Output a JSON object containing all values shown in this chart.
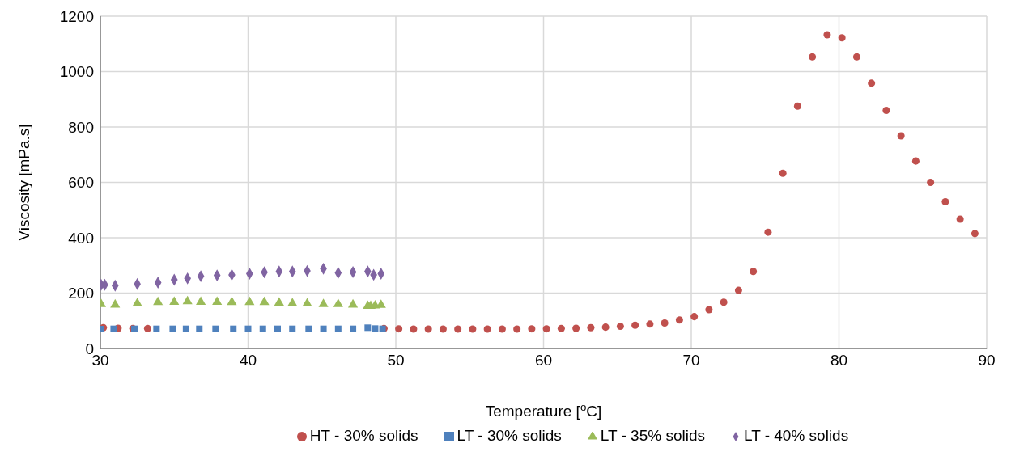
{
  "chart_data": {
    "type": "scatter",
    "xlabel": "Temperature [$^{o}$C]",
    "ylabel": "Viscosity [mPa.s]",
    "xlim": [
      30,
      90
    ],
    "xticks": [
      30,
      40,
      50,
      60,
      70,
      80,
      90
    ],
    "ylim": [
      0,
      1200
    ],
    "yticks": [
      0,
      200,
      400,
      600,
      800,
      1000,
      1200
    ],
    "grid": true,
    "legend": "bottom",
    "series": [
      {
        "name": "HT - 30% solids",
        "color": "#c0504d",
        "marker": "circle",
        "x": [
          30.2,
          31.2,
          32.2,
          33.2,
          34.2,
          35.2,
          36.2,
          37.2,
          38.2,
          39.2,
          40.2,
          41.2,
          42.2,
          43.2,
          44.2,
          45.2,
          46.2,
          47.2,
          48.2,
          49.2,
          50.2,
          51.2,
          52.2,
          53.2,
          54.2,
          55.2,
          56.2,
          57.2,
          58.2,
          59.2,
          60.2,
          61.2,
          62.2,
          63.2,
          64.2,
          65.2,
          66.2,
          67.2,
          68.2,
          69.2,
          70.2,
          71.2,
          72.2,
          73.2,
          74.2,
          75.2,
          76.2,
          77.2,
          78.2,
          79.2,
          80.2,
          81.2,
          82.2,
          83.2,
          84.2,
          85.2,
          86.2,
          87.2,
          88.2,
          89.2
        ],
        "values": [
          75,
          73,
          72,
          72,
          null,
          null,
          null,
          null,
          null,
          null,
          null,
          null,
          null,
          null,
          null,
          null,
          null,
          null,
          null,
          72,
          71,
          70,
          70,
          70,
          70,
          70,
          70,
          70,
          70,
          71,
          71,
          72,
          73,
          75,
          77,
          80,
          84,
          88,
          92,
          103,
          115,
          140,
          167,
          210,
          278,
          420,
          633,
          875,
          1053,
          1133,
          1122,
          1053,
          958,
          860,
          768,
          677,
          600,
          530,
          467,
          415
        ]
      },
      {
        "name": "LT - 30% solids",
        "color": "#4f81bd",
        "marker": "square",
        "x": [
          30.0,
          30.9,
          32.3,
          33.8,
          34.9,
          35.8,
          36.7,
          37.8,
          39.0,
          40.0,
          41.0,
          42.0,
          43.0,
          44.1,
          45.1,
          46.1,
          47.1,
          48.1,
          48.6,
          49.1
        ],
        "values": [
          70,
          71,
          71,
          71,
          71,
          71,
          71,
          71,
          71,
          71,
          71,
          71,
          71,
          71,
          71,
          71,
          71,
          75,
          72,
          71
        ]
      },
      {
        "name": "LT - 35% solids",
        "color": "#9bbb59",
        "marker": "triangle",
        "x": [
          30.05,
          31.0,
          32.5,
          33.9,
          35.0,
          35.9,
          36.8,
          37.9,
          38.9,
          40.1,
          41.1,
          42.1,
          43.0,
          44.0,
          45.1,
          46.1,
          47.1,
          48.1,
          48.3,
          48.6,
          49.0
        ],
        "values": [
          160,
          158,
          163,
          167,
          168,
          170,
          168,
          168,
          167,
          167,
          167,
          165,
          163,
          162,
          160,
          160,
          158,
          153,
          153,
          155,
          157
        ]
      },
      {
        "name": "LT - 40% solids",
        "color": "#8064a2",
        "marker": "diamond",
        "x": [
          30.05,
          30.3,
          31.0,
          32.5,
          33.9,
          35.0,
          35.9,
          36.8,
          37.9,
          38.9,
          40.1,
          41.1,
          42.1,
          43.0,
          44.0,
          45.1,
          46.1,
          47.1,
          48.1,
          48.5,
          49.0
        ],
        "values": [
          230,
          230,
          227,
          233,
          238,
          248,
          253,
          261,
          264,
          266,
          270,
          275,
          278,
          278,
          280,
          288,
          273,
          276,
          278,
          266,
          270
        ]
      }
    ]
  }
}
